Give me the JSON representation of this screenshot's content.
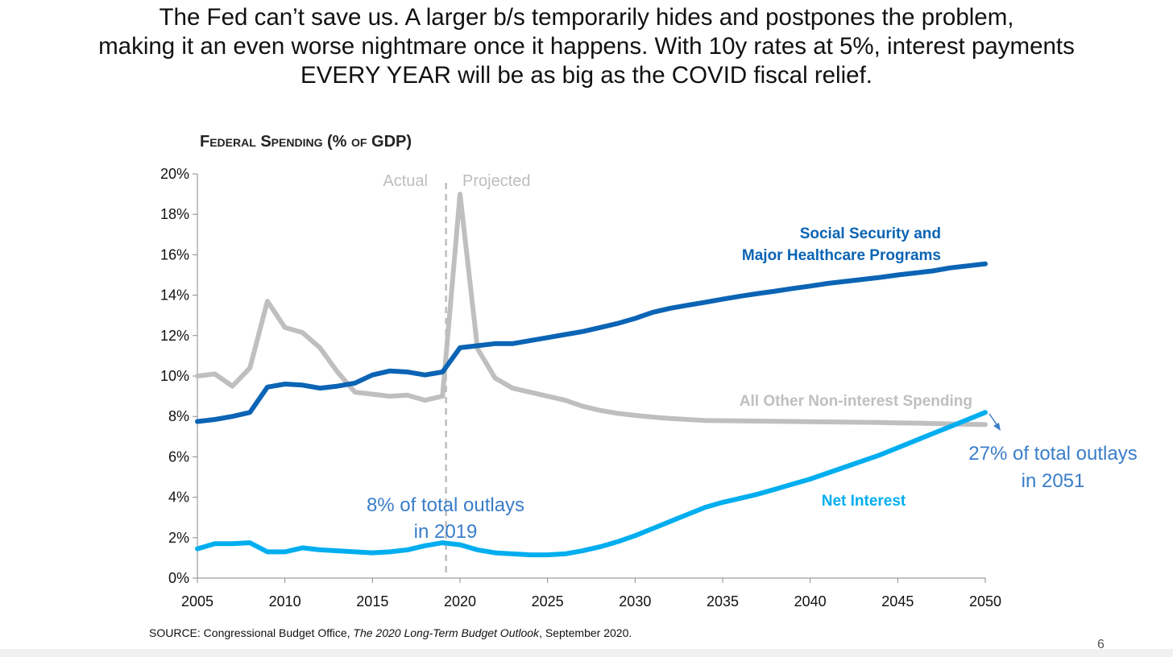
{
  "headline": [
    "The Fed can’t save us. A larger b/s temporarily hides and postpones the problem,",
    "making it an even worse nightmare once it happens. With 10y rates at 5%, interest payments",
    "EVERY YEAR will be as big as the COVID fiscal relief."
  ],
  "source_label": "SOURCE: Congressional Budget Office, ",
  "source_title": "The 2020 Long-Term Budget Outlook",
  "source_date": ", September 2020.",
  "page_number": "6",
  "chart_data": {
    "type": "line",
    "title": "Federal Spending (% of GDP)",
    "xlabel": "",
    "ylabel": "",
    "xlim": [
      2005,
      2050
    ],
    "ylim": [
      0,
      20
    ],
    "x_ticks": [
      "2005",
      "2010",
      "2015",
      "2020",
      "2025",
      "2030",
      "2035",
      "2040",
      "2045",
      "2050"
    ],
    "y_ticks": [
      "0%",
      "2%",
      "4%",
      "6%",
      "8%",
      "10%",
      "12%",
      "14%",
      "16%",
      "18%",
      "20%"
    ],
    "grid": false,
    "divider": {
      "x": 2019.2,
      "left_label": "Actual",
      "right_label": "Projected"
    },
    "x": [
      2005,
      2006,
      2007,
      2008,
      2009,
      2010,
      2011,
      2012,
      2013,
      2014,
      2015,
      2016,
      2017,
      2018,
      2019,
      2020,
      2021,
      2022,
      2023,
      2024,
      2025,
      2026,
      2027,
      2028,
      2029,
      2030,
      2031,
      2032,
      2033,
      2034,
      2035,
      2036,
      2037,
      2038,
      2039,
      2040,
      2041,
      2042,
      2043,
      2044,
      2045,
      2046,
      2047,
      2048,
      2049,
      2050
    ],
    "series": [
      {
        "name": "All Other Non-interest Spending",
        "label": "All Other Non-interest Spending",
        "color": "#bfbfbf",
        "values": [
          10.0,
          10.1,
          9.5,
          10.4,
          13.7,
          12.4,
          12.15,
          11.4,
          10.2,
          9.2,
          9.1,
          9.0,
          9.05,
          8.8,
          9.0,
          19.0,
          11.35,
          9.9,
          9.4,
          9.2,
          9.0,
          8.8,
          8.5,
          8.3,
          8.15,
          8.05,
          7.97,
          7.9,
          7.85,
          7.8,
          7.79,
          7.78,
          7.77,
          7.76,
          7.75,
          7.74,
          7.73,
          7.72,
          7.71,
          7.7,
          7.68,
          7.67,
          7.65,
          7.63,
          7.61,
          7.6
        ]
      },
      {
        "name": "Social Security and Major Healthcare Programs",
        "label_lines": [
          "Social Security and",
          "Major Healthcare Programs"
        ],
        "color": "#0b64b4",
        "values": [
          7.75,
          7.85,
          8.0,
          8.2,
          9.45,
          9.6,
          9.55,
          9.4,
          9.5,
          9.65,
          10.05,
          10.25,
          10.2,
          10.05,
          10.2,
          11.4,
          11.5,
          11.6,
          11.6,
          11.75,
          11.9,
          12.05,
          12.2,
          12.4,
          12.6,
          12.85,
          13.15,
          13.35,
          13.5,
          13.65,
          13.8,
          13.95,
          14.08,
          14.2,
          14.33,
          14.45,
          14.58,
          14.68,
          14.78,
          14.88,
          15.0,
          15.1,
          15.2,
          15.35,
          15.45,
          15.55
        ]
      },
      {
        "name": "Net Interest",
        "label": "Net Interest",
        "color": "#00aeef",
        "values": [
          1.45,
          1.7,
          1.7,
          1.75,
          1.3,
          1.3,
          1.5,
          1.4,
          1.35,
          1.3,
          1.25,
          1.3,
          1.4,
          1.6,
          1.75,
          1.65,
          1.4,
          1.25,
          1.2,
          1.15,
          1.15,
          1.2,
          1.35,
          1.55,
          1.8,
          2.1,
          2.45,
          2.8,
          3.15,
          3.5,
          3.75,
          3.95,
          4.15,
          4.4,
          4.65,
          4.9,
          5.2,
          5.5,
          5.8,
          6.1,
          6.45,
          6.8,
          7.15,
          7.5,
          7.85,
          8.2
        ]
      }
    ],
    "annotations": [
      {
        "lines": [
          "8% of total outlays",
          "in 2019"
        ],
        "color": "#3a7dc9"
      },
      {
        "lines": [
          "27% of total outlays",
          "in 2051"
        ],
        "color": "#3a7dc9"
      }
    ]
  }
}
